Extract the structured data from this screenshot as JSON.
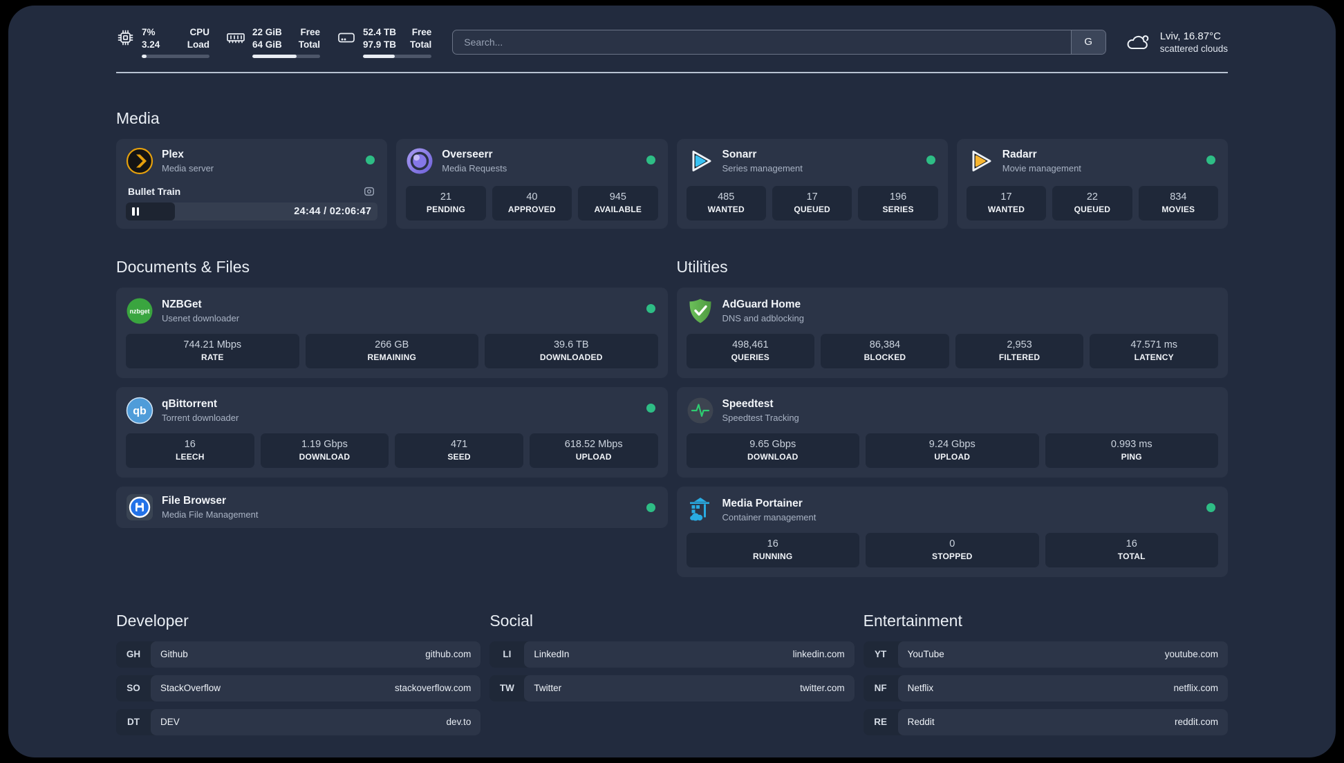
{
  "header": {
    "system_stats": [
      {
        "name": "cpu",
        "values": [
          "7%",
          "3.24"
        ],
        "labels": [
          "CPU",
          "Load"
        ],
        "progress": 7
      },
      {
        "name": "memory",
        "values": [
          "22 GiB",
          "64 GiB"
        ],
        "labels": [
          "Free",
          "Total"
        ],
        "progress": 65
      },
      {
        "name": "disk",
        "values": [
          "52.4 TB",
          "97.9 TB"
        ],
        "labels": [
          "Free",
          "Total"
        ],
        "progress": 46
      }
    ],
    "search": {
      "placeholder": "Search...",
      "button_label": "G"
    },
    "weather": {
      "location": "Lviv, 16.87°C",
      "condition": "scattered clouds"
    }
  },
  "sections": {
    "media": {
      "title": "Media",
      "cards": [
        {
          "app": "Plex",
          "subtitle": "Media server",
          "online": true,
          "now_playing": {
            "title": "Bullet Train",
            "elapsed_total": "24:44 / 02:06:47",
            "progress_percent": 19.6
          }
        },
        {
          "app": "Overseerr",
          "subtitle": "Media Requests",
          "online": true,
          "stats": [
            {
              "value": "21",
              "label": "PENDING"
            },
            {
              "value": "40",
              "label": "APPROVED"
            },
            {
              "value": "945",
              "label": "AVAILABLE"
            }
          ]
        },
        {
          "app": "Sonarr",
          "subtitle": "Series management",
          "online": true,
          "stats": [
            {
              "value": "485",
              "label": "WANTED"
            },
            {
              "value": "17",
              "label": "QUEUED"
            },
            {
              "value": "196",
              "label": "SERIES"
            }
          ]
        },
        {
          "app": "Radarr",
          "subtitle": "Movie management",
          "online": true,
          "stats": [
            {
              "value": "17",
              "label": "WANTED"
            },
            {
              "value": "22",
              "label": "QUEUED"
            },
            {
              "value": "834",
              "label": "MOVIES"
            }
          ]
        }
      ]
    },
    "documents": {
      "title": "Documents & Files",
      "cards": [
        {
          "app": "NZBGet",
          "subtitle": "Usenet downloader",
          "online": true,
          "stats": [
            {
              "value": "744.21 Mbps",
              "label": "RATE"
            },
            {
              "value": "266 GB",
              "label": "REMAINING"
            },
            {
              "value": "39.6 TB",
              "label": "DOWNLOADED"
            }
          ]
        },
        {
          "app": "qBittorrent",
          "subtitle": "Torrent downloader",
          "online": true,
          "stats": [
            {
              "value": "16",
              "label": "LEECH"
            },
            {
              "value": "1.19 Gbps",
              "label": "DOWNLOAD"
            },
            {
              "value": "471",
              "label": "SEED"
            },
            {
              "value": "618.52 Mbps",
              "label": "UPLOAD"
            }
          ]
        },
        {
          "app": "File Browser",
          "subtitle": "Media File Management",
          "online": true
        }
      ]
    },
    "utilities": {
      "title": "Utilities",
      "cards": [
        {
          "app": "AdGuard Home",
          "subtitle": "DNS and adblocking",
          "stats": [
            {
              "value": "498,461",
              "label": "QUERIES"
            },
            {
              "value": "86,384",
              "label": "BLOCKED"
            },
            {
              "value": "2,953",
              "label": "FILTERED"
            },
            {
              "value": "47.571 ms",
              "label": "LATENCY"
            }
          ]
        },
        {
          "app": "Speedtest",
          "subtitle": "Speedtest Tracking",
          "stats": [
            {
              "value": "9.65 Gbps",
              "label": "DOWNLOAD"
            },
            {
              "value": "9.24 Gbps",
              "label": "UPLOAD"
            },
            {
              "value": "0.993 ms",
              "label": "PING"
            }
          ]
        },
        {
          "app": "Media Portainer",
          "subtitle": "Container management",
          "online": true,
          "stats": [
            {
              "value": "16",
              "label": "RUNNING"
            },
            {
              "value": "0",
              "label": "STOPPED"
            },
            {
              "value": "16",
              "label": "TOTAL"
            }
          ]
        }
      ]
    },
    "bookmarks": [
      {
        "title": "Developer",
        "items": [
          {
            "abbr": "GH",
            "name": "Github",
            "url": "github.com"
          },
          {
            "abbr": "SO",
            "name": "StackOverflow",
            "url": "stackoverflow.com"
          },
          {
            "abbr": "DT",
            "name": "DEV",
            "url": "dev.to"
          }
        ]
      },
      {
        "title": "Social",
        "items": [
          {
            "abbr": "LI",
            "name": "LinkedIn",
            "url": "linkedin.com"
          },
          {
            "abbr": "TW",
            "name": "Twitter",
            "url": "twitter.com"
          }
        ]
      },
      {
        "title": "Entertainment",
        "items": [
          {
            "abbr": "YT",
            "name": "YouTube",
            "url": "youtube.com"
          },
          {
            "abbr": "NF",
            "name": "Netflix",
            "url": "netflix.com"
          },
          {
            "abbr": "RE",
            "name": "Reddit",
            "url": "reddit.com"
          }
        ]
      }
    ]
  },
  "colors": {
    "status_online": "#2ebd85",
    "plex_gold": "#e5a00d",
    "sonarr_blue": "#38c1f2",
    "radarr_gold": "#f7b530",
    "portainer_blue": "#29abe2"
  }
}
